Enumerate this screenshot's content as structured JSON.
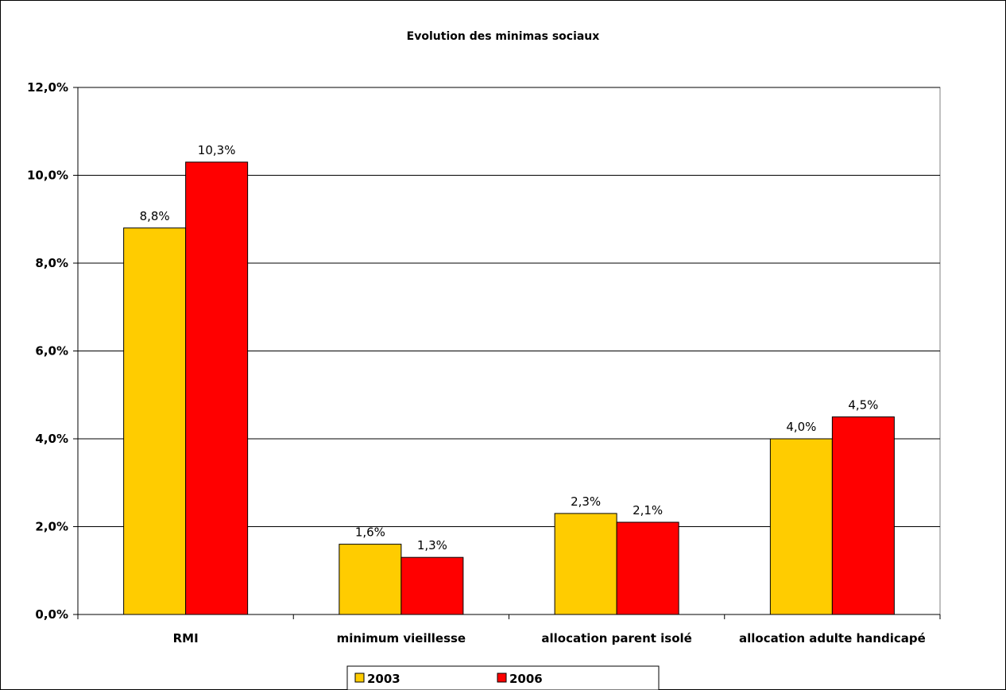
{
  "chart_data": {
    "type": "bar",
    "title": "Evolution des minimas sociaux",
    "xlabel": "",
    "ylabel": "",
    "categories": [
      "RMI",
      "minimum vieillesse",
      "allocation parent isolé",
      "allocation adulte handicapé"
    ],
    "series": [
      {
        "name": "2003",
        "values": [
          8.8,
          1.6,
          2.3,
          4.0
        ],
        "labels": [
          "8,8%",
          "1,6%",
          "2,3%",
          "4,0%"
        ],
        "color": "#FFCC00"
      },
      {
        "name": "2006",
        "values": [
          10.3,
          1.3,
          2.1,
          4.5
        ],
        "labels": [
          "10,3%",
          "1,3%",
          "2,1%",
          "4,5%"
        ],
        "color": "#FF0000"
      }
    ],
    "ylim": [
      0,
      12
    ],
    "yticks": [
      {
        "value": 0,
        "label": "0,0%"
      },
      {
        "value": 2,
        "label": "2,0%"
      },
      {
        "value": 4,
        "label": "4,0%"
      },
      {
        "value": 6,
        "label": "6,0%"
      },
      {
        "value": 8,
        "label": "8,0%"
      },
      {
        "value": 10,
        "label": "10,0%"
      },
      {
        "value": 12,
        "label": "12,0%"
      }
    ],
    "grid": true,
    "legend_position": "bottom"
  }
}
